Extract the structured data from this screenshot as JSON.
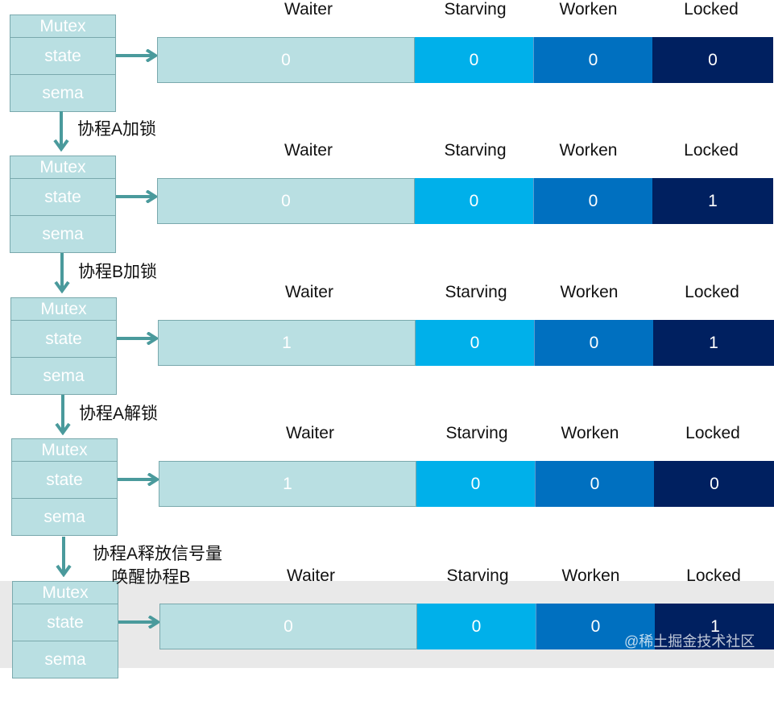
{
  "mutex": {
    "title": "Mutex",
    "fields": [
      "state",
      "sema"
    ]
  },
  "columns": [
    "Waiter",
    "Starving",
    "Worken",
    "Locked"
  ],
  "colors": {
    "waiter": "#b9dfe2",
    "starving": "#00b0ea",
    "worken": "#0070c0",
    "locked": "#002060",
    "arrow": "#4a9a9c"
  },
  "stages": [
    {
      "values": [
        "0",
        "0",
        "0",
        "0"
      ]
    },
    {
      "values": [
        "0",
        "0",
        "0",
        "1"
      ]
    },
    {
      "values": [
        "1",
        "0",
        "0",
        "1"
      ]
    },
    {
      "values": [
        "1",
        "0",
        "0",
        "0"
      ]
    },
    {
      "values": [
        "0",
        "0",
        "0",
        "1"
      ]
    }
  ],
  "steps": [
    "协程A加锁",
    "协程B加锁",
    "协程A解锁",
    "协程A释放信号量\n    唤醒协程B"
  ],
  "watermark": "@稀土掘金技术社区"
}
